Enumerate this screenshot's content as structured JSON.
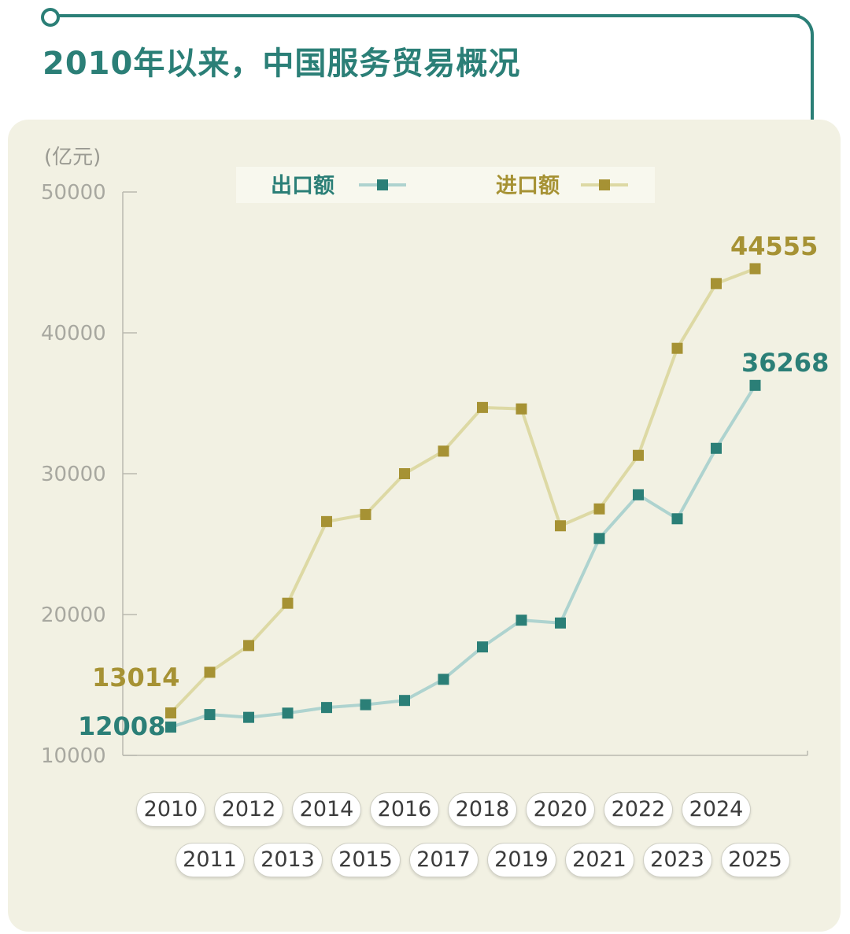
{
  "title": "2010年以来，中国服务贸易概况",
  "colors": {
    "accent": "#2b7f77",
    "export_line": "#aed3cf",
    "export_marker": "#2b7f77",
    "import_line": "#ddd9a4",
    "import_marker": "#a69234",
    "panel_bg": "#f2f1e3"
  },
  "chart_data": {
    "type": "line",
    "unit_label": "(亿元)",
    "ylim": [
      10000,
      50000
    ],
    "yticks": [
      10000,
      20000,
      30000,
      40000,
      50000
    ],
    "categories": [
      "2010",
      "2011",
      "2012",
      "2013",
      "2014",
      "2015",
      "2016",
      "2017",
      "2018",
      "2019",
      "2020",
      "2021",
      "2022",
      "2023",
      "2024",
      "2025"
    ],
    "series": [
      {
        "name": "出口额",
        "values": [
          12008,
          12900,
          12700,
          13000,
          13400,
          13600,
          13900,
          15400,
          17700,
          19600,
          19400,
          25400,
          28500,
          26800,
          31800,
          36268
        ]
      },
      {
        "name": "进口额",
        "values": [
          13014,
          15900,
          17800,
          20800,
          26600,
          27100,
          30000,
          31600,
          34700,
          34600,
          26300,
          27500,
          31300,
          38900,
          43500,
          44555
        ]
      }
    ],
    "data_labels": {
      "export_first": "12008",
      "export_last": "36268",
      "import_first": "13014",
      "import_last": "44555"
    },
    "legend": {
      "position": "top"
    },
    "grid": false
  }
}
